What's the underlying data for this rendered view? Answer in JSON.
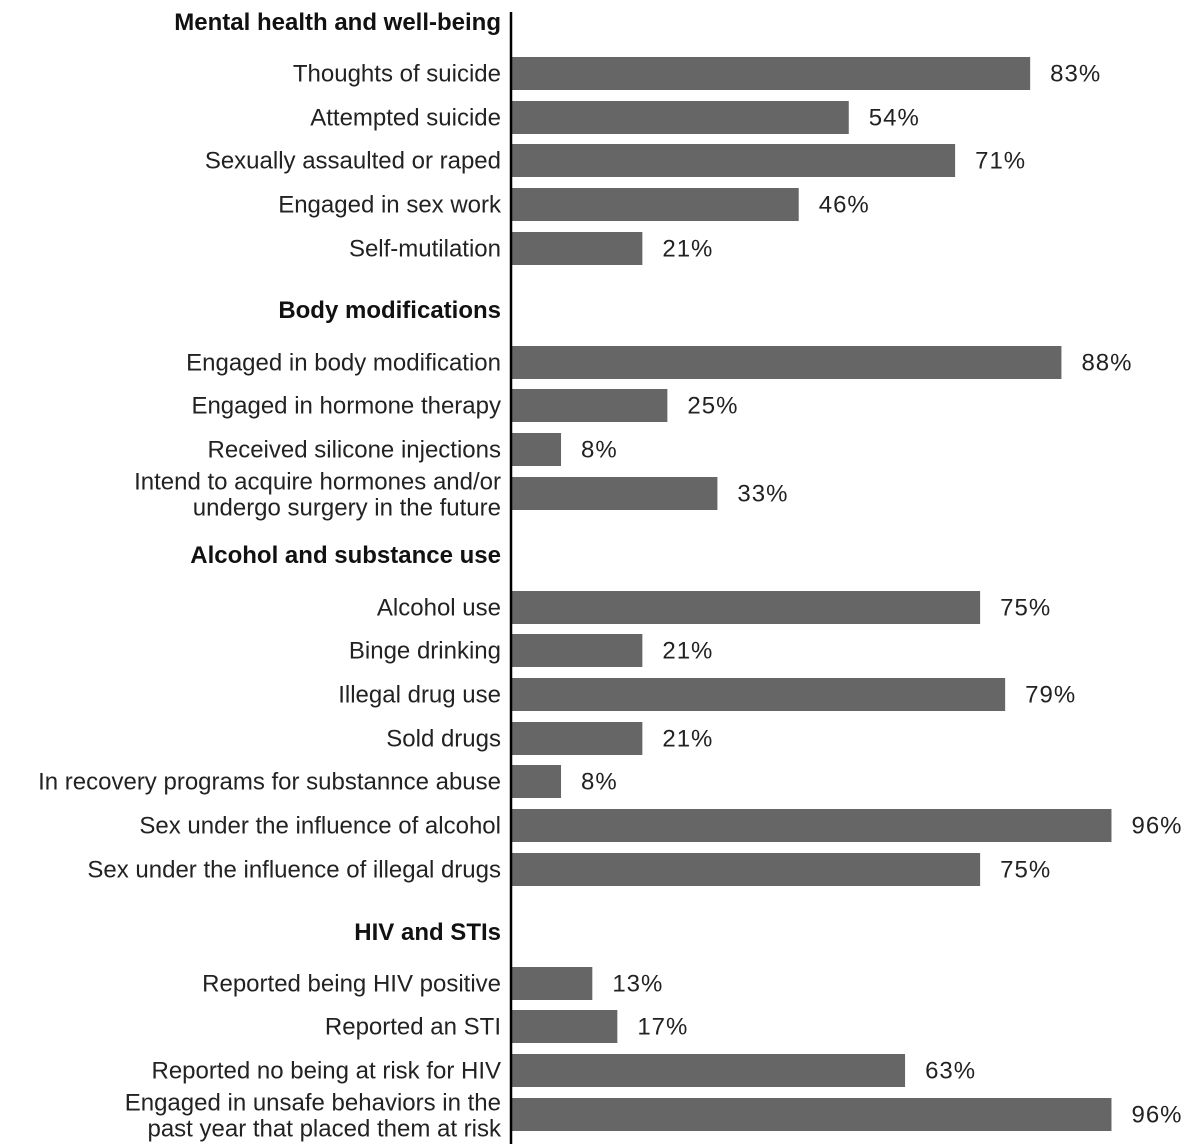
{
  "colors": {
    "bar": "#666666",
    "axis": "#000000",
    "text": "#222222"
  },
  "chart_data": {
    "type": "bar",
    "orientation": "horizontal",
    "xlim": [
      0,
      100
    ],
    "grid": false,
    "value_suffix": "%",
    "groups": [
      {
        "name": "Mental health and well-being",
        "items": [
          {
            "label": [
              "Thoughts of suicide"
            ],
            "value": 83
          },
          {
            "label": [
              "Attempted suicide"
            ],
            "value": 54
          },
          {
            "label": [
              "Sexually assaulted or raped"
            ],
            "value": 71
          },
          {
            "label": [
              "Engaged in sex work"
            ],
            "value": 46
          },
          {
            "label": [
              "Self-mutilation"
            ],
            "value": 21
          }
        ]
      },
      {
        "name": "Body modifications",
        "items": [
          {
            "label": [
              "Engaged in body modification"
            ],
            "value": 88
          },
          {
            "label": [
              "Engaged in hormone therapy"
            ],
            "value": 25
          },
          {
            "label": [
              "Received silicone injections"
            ],
            "value": 8
          },
          {
            "label": [
              "Intend to acquire hormones and/or",
              "undergo surgery in the future"
            ],
            "value": 33
          }
        ]
      },
      {
        "name": "Alcohol and substance use",
        "items": [
          {
            "label": [
              "Alcohol use"
            ],
            "value": 75
          },
          {
            "label": [
              "Binge drinking"
            ],
            "value": 21
          },
          {
            "label": [
              "Illegal drug use"
            ],
            "value": 79
          },
          {
            "label": [
              "Sold drugs"
            ],
            "value": 21
          },
          {
            "label": [
              "In recovery programs for substannce abuse"
            ],
            "value": 8
          },
          {
            "label": [
              "Sex under the influence of alcohol"
            ],
            "value": 96
          },
          {
            "label": [
              "Sex under the influence of illegal drugs"
            ],
            "value": 75
          }
        ]
      },
      {
        "name": "HIV and STIs",
        "items": [
          {
            "label": [
              "Reported being HIV positive"
            ],
            "value": 13
          },
          {
            "label": [
              "Reported an STI"
            ],
            "value": 17
          },
          {
            "label": [
              "Reported no being at risk for HIV"
            ],
            "value": 63
          },
          {
            "label": [
              "Engaged in unsafe behaviors in the",
              "past year that placed them at risk"
            ],
            "value": 96
          }
        ]
      }
    ]
  }
}
